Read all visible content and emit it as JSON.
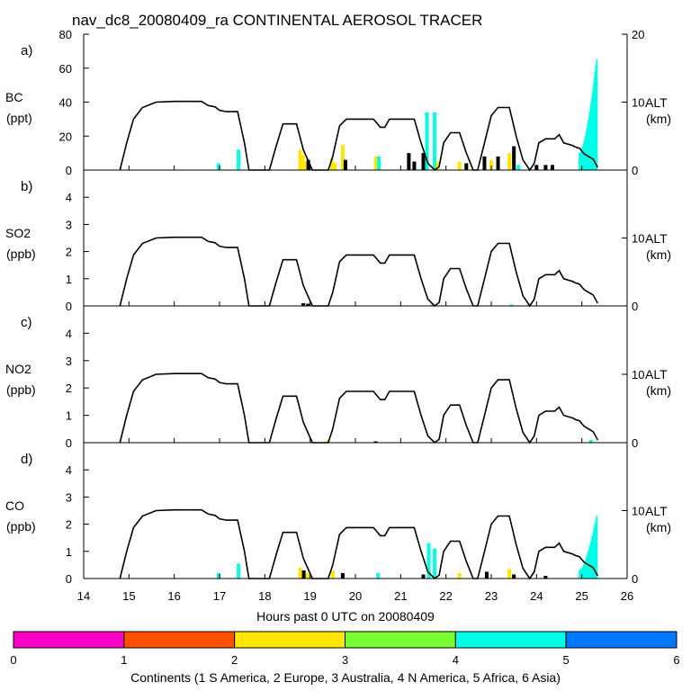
{
  "chart_data": {
    "type": "line",
    "title": "nav_dc8_20080409_ra CONTINENTAL AEROSOL TRACER",
    "xlabel": "Hours past 0 UTC on 20080409",
    "xlim": [
      14,
      26
    ],
    "x_ticks": [
      "14",
      "15",
      "16",
      "17",
      "18",
      "19",
      "20",
      "21",
      "22",
      "23",
      "24",
      "25",
      "26"
    ],
    "altitude": {
      "name": "ALT",
      "units": "(km)",
      "ylim": [
        0,
        20
      ],
      "y_ticks": [
        "0",
        "10",
        "20"
      ],
      "points": [
        [
          14.8,
          0
        ],
        [
          14.95,
          4
        ],
        [
          15.1,
          7.5
        ],
        [
          15.3,
          9.2
        ],
        [
          15.6,
          10
        ],
        [
          16.0,
          10.1
        ],
        [
          16.6,
          10.1
        ],
        [
          16.75,
          9.5
        ],
        [
          16.9,
          9.3
        ],
        [
          17.0,
          8.8
        ],
        [
          17.15,
          8.6
        ],
        [
          17.4,
          8.6
        ],
        [
          17.55,
          4
        ],
        [
          17.65,
          0
        ],
        [
          18.0,
          0
        ],
        [
          18.1,
          0
        ],
        [
          18.25,
          3.5
        ],
        [
          18.4,
          6.8
        ],
        [
          18.7,
          6.8
        ],
        [
          18.85,
          3
        ],
        [
          19.05,
          0
        ],
        [
          19.4,
          0
        ],
        [
          19.5,
          2
        ],
        [
          19.65,
          6.5
        ],
        [
          19.8,
          7.5
        ],
        [
          20.4,
          7.5
        ],
        [
          20.55,
          6.3
        ],
        [
          20.65,
          6.3
        ],
        [
          20.75,
          7.5
        ],
        [
          21.3,
          7.5
        ],
        [
          21.45,
          4
        ],
        [
          21.6,
          1
        ],
        [
          21.75,
          0
        ],
        [
          21.85,
          0.5
        ],
        [
          21.95,
          4
        ],
        [
          22.1,
          5.5
        ],
        [
          22.3,
          5.5
        ],
        [
          22.45,
          2.5
        ],
        [
          22.6,
          0
        ],
        [
          22.7,
          0
        ],
        [
          22.85,
          4
        ],
        [
          23.0,
          8
        ],
        [
          23.15,
          9.2
        ],
        [
          23.4,
          9.2
        ],
        [
          23.55,
          5
        ],
        [
          23.7,
          1.5
        ],
        [
          23.85,
          0
        ],
        [
          23.95,
          1
        ],
        [
          24.05,
          4
        ],
        [
          24.2,
          4.6
        ],
        [
          24.4,
          4.6
        ],
        [
          24.5,
          5.2
        ],
        [
          24.6,
          4
        ],
        [
          24.8,
          3.6
        ],
        [
          24.85,
          3.4
        ],
        [
          24.95,
          3.2
        ],
        [
          25.05,
          2.4
        ],
        [
          25.15,
          2
        ],
        [
          25.25,
          1.6
        ],
        [
          25.35,
          0.4
        ]
      ]
    },
    "species_by_continent": {
      "0": "#ff00c8",
      "1": "#ff5000",
      "2": "#ffe600",
      "3": "#78ff32",
      "4": "#00ffe6",
      "5": "#0078ff"
    },
    "panels": [
      {
        "letter": "a)",
        "species": "BC",
        "units": "(ppt)",
        "ylim": [
          0,
          80
        ],
        "y_ticks": [
          "0",
          "20",
          "40",
          "60",
          "80"
        ],
        "bars": [
          {
            "x": 16.98,
            "value": 4,
            "continent": 4
          },
          {
            "x": 17.42,
            "value": 12,
            "continent": 4
          },
          {
            "x": 18.78,
            "value": 12,
            "continent": 2
          },
          {
            "x": 18.84,
            "value": 9,
            "continent": 2
          },
          {
            "x": 18.9,
            "value": 5,
            "continent": 2
          },
          {
            "x": 18.96,
            "value": 6,
            "continent": 6
          },
          {
            "x": 19.48,
            "value": 7,
            "continent": 2
          },
          {
            "x": 19.55,
            "value": 4,
            "continent": 2
          },
          {
            "x": 19.72,
            "value": 15,
            "continent": 2
          },
          {
            "x": 19.78,
            "value": 6,
            "continent": 6
          },
          {
            "x": 20.45,
            "value": 8,
            "continent": 2
          },
          {
            "x": 20.52,
            "value": 8,
            "continent": 4
          },
          {
            "x": 21.18,
            "value": 10,
            "continent": 6
          },
          {
            "x": 21.3,
            "value": 5,
            "continent": 6
          },
          {
            "x": 21.5,
            "value": 10,
            "continent": 6
          },
          {
            "x": 21.58,
            "value": 34,
            "continent": 4
          },
          {
            "x": 21.75,
            "value": 34,
            "continent": 4
          },
          {
            "x": 21.82,
            "value": 5,
            "continent": 2
          },
          {
            "x": 22.3,
            "value": 5,
            "continent": 2
          },
          {
            "x": 22.45,
            "value": 4,
            "continent": 6
          },
          {
            "x": 22.85,
            "value": 8,
            "continent": 6
          },
          {
            "x": 23.0,
            "value": 6,
            "continent": 2
          },
          {
            "x": 23.15,
            "value": 8,
            "continent": 6
          },
          {
            "x": 23.4,
            "value": 10,
            "continent": 2
          },
          {
            "x": 23.5,
            "value": 14,
            "continent": 6
          },
          {
            "x": 23.6,
            "value": 3,
            "continent": 4
          },
          {
            "x": 24.0,
            "value": 3,
            "continent": 6
          },
          {
            "x": 24.2,
            "value": 3,
            "continent": 6
          },
          {
            "x": 24.35,
            "value": 3,
            "continent": 6
          }
        ],
        "ramp": {
          "x_start": 24.95,
          "x_end": 25.33,
          "v_start": 10,
          "v_end": 65,
          "continent": 4
        }
      },
      {
        "letter": "b)",
        "species": "SO2",
        "units": "(ppb)",
        "ylim": [
          0,
          5
        ],
        "y_ticks": [
          "0",
          "1",
          "2",
          "3",
          "4"
        ],
        "bars": [
          {
            "x": 18.85,
            "value": 0.1,
            "continent": 6
          },
          {
            "x": 18.95,
            "value": 0.08,
            "continent": 6
          },
          {
            "x": 21.7,
            "value": 0.05,
            "continent": 4
          },
          {
            "x": 23.45,
            "value": 0.05,
            "continent": 4
          }
        ],
        "ramp": null
      },
      {
        "letter": "c)",
        "species": "NO2",
        "units": "(ppb)",
        "ylim": [
          0,
          5
        ],
        "y_ticks": [
          "0",
          "1",
          "2",
          "3",
          "4"
        ],
        "bars": [
          {
            "x": 19.4,
            "value": 0.1,
            "continent": 2
          },
          {
            "x": 20.45,
            "value": 0.05,
            "continent": 6
          },
          {
            "x": 25.2,
            "value": 0.1,
            "continent": 4
          }
        ],
        "ramp": null
      },
      {
        "letter": "d)",
        "species": "CO",
        "units": "(ppb)",
        "ylim": [
          0,
          5
        ],
        "y_ticks": [
          "0",
          "1",
          "2",
          "3",
          "4"
        ],
        "bars": [
          {
            "x": 16.98,
            "value": 0.2,
            "continent": 4
          },
          {
            "x": 17.42,
            "value": 0.55,
            "continent": 4
          },
          {
            "x": 18.78,
            "value": 0.4,
            "continent": 2
          },
          {
            "x": 18.86,
            "value": 0.3,
            "continent": 6
          },
          {
            "x": 18.95,
            "value": 0.2,
            "continent": 2
          },
          {
            "x": 19.5,
            "value": 0.3,
            "continent": 2
          },
          {
            "x": 19.72,
            "value": 0.2,
            "continent": 6
          },
          {
            "x": 20.5,
            "value": 0.2,
            "continent": 4
          },
          {
            "x": 21.5,
            "value": 0.15,
            "continent": 6
          },
          {
            "x": 21.62,
            "value": 1.3,
            "continent": 4
          },
          {
            "x": 21.75,
            "value": 1.1,
            "continent": 4
          },
          {
            "x": 22.3,
            "value": 0.2,
            "continent": 2
          },
          {
            "x": 22.9,
            "value": 0.25,
            "continent": 6
          },
          {
            "x": 23.4,
            "value": 0.35,
            "continent": 2
          },
          {
            "x": 23.5,
            "value": 0.15,
            "continent": 6
          },
          {
            "x": 24.2,
            "value": 0.1,
            "continent": 6
          }
        ],
        "ramp": {
          "x_start": 24.95,
          "x_end": 25.33,
          "v_start": 0.3,
          "v_end": 2.3,
          "continent": 4
        }
      }
    ],
    "colorbar": {
      "label": "Continents (1 S America, 2 Europe, 3 Australia, 4 N America, 5 Africa, 6 Asia)",
      "ticks": [
        "0",
        "1",
        "2",
        "3",
        "4",
        "5",
        "6"
      ],
      "colors": [
        "#ff00c8",
        "#ff5000",
        "#ffe600",
        "#78ff32",
        "#00ffe6",
        "#0078ff"
      ]
    }
  }
}
